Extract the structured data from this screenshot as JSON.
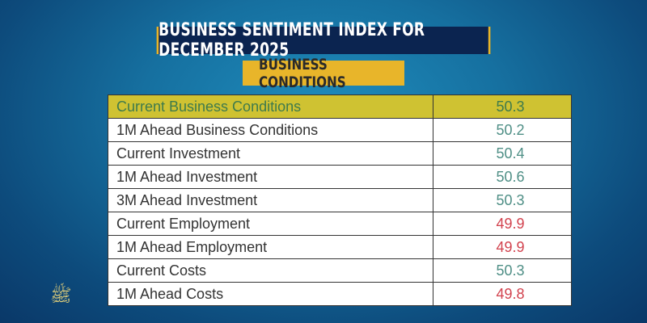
{
  "title": "BUSINESS SENTIMENT INDEX FOR DECEMBER 2025",
  "subtitle": "BUSINESS CONDITIONS",
  "colors": {
    "positive": "#4f8f86",
    "negative": "#d2424e",
    "highlight": "#cfc232",
    "accent": "#e8b52a"
  },
  "rows": [
    {
      "label": "Current Business Conditions",
      "value": "50.3",
      "tone": "highlight"
    },
    {
      "label": "1M Ahead Business Conditions",
      "value": "50.2",
      "tone": "positive"
    },
    {
      "label": "Current Investment",
      "value": "50.4",
      "tone": "positive"
    },
    {
      "label": "1M Ahead Investment",
      "value": "50.6",
      "tone": "positive"
    },
    {
      "label": "3M Ahead Investment",
      "value": "50.3",
      "tone": "positive"
    },
    {
      "label": "Current Employment",
      "value": "49.9",
      "tone": "negative"
    },
    {
      "label": "1M Ahead Employment",
      "value": "49.9",
      "tone": "negative"
    },
    {
      "label": "Current Costs",
      "value": "50.3",
      "tone": "positive"
    },
    {
      "label": "1M Ahead Costs",
      "value": "49.8",
      "tone": "negative"
    }
  ]
}
